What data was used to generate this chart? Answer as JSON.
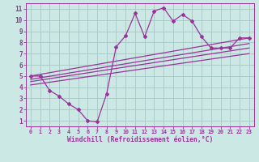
{
  "xlabel": "Windchill (Refroidissement éolien,°C)",
  "bg_color": "#cce8e4",
  "grid_color": "#aaccc8",
  "line_color": "#993399",
  "xlim": [
    -0.5,
    23.5
  ],
  "ylim": [
    0.5,
    11.5
  ],
  "xticks": [
    0,
    1,
    2,
    3,
    4,
    5,
    6,
    7,
    8,
    9,
    10,
    11,
    12,
    13,
    14,
    15,
    16,
    17,
    18,
    19,
    20,
    21,
    22,
    23
  ],
  "yticks": [
    1,
    2,
    3,
    4,
    5,
    6,
    7,
    8,
    9,
    10,
    11
  ],
  "main_x": [
    0,
    1,
    2,
    3,
    4,
    5,
    6,
    7,
    8,
    9,
    10,
    11,
    12,
    13,
    14,
    15,
    16,
    17,
    18,
    19,
    20,
    21,
    22,
    23
  ],
  "main_y": [
    5.0,
    5.0,
    3.7,
    3.2,
    2.5,
    2.0,
    1.0,
    0.9,
    3.4,
    7.6,
    8.6,
    10.6,
    8.5,
    10.8,
    11.1,
    9.9,
    10.5,
    9.9,
    8.5,
    7.5,
    7.5,
    7.5,
    8.4,
    8.4
  ],
  "line1_x": [
    0,
    23
  ],
  "line1_y": [
    5.0,
    8.4
  ],
  "line2_x": [
    0,
    23
  ],
  "line2_y": [
    4.7,
    7.9
  ],
  "line3_x": [
    0,
    23
  ],
  "line3_y": [
    4.5,
    7.5
  ],
  "line4_x": [
    0,
    23
  ],
  "line4_y": [
    4.2,
    7.0
  ]
}
